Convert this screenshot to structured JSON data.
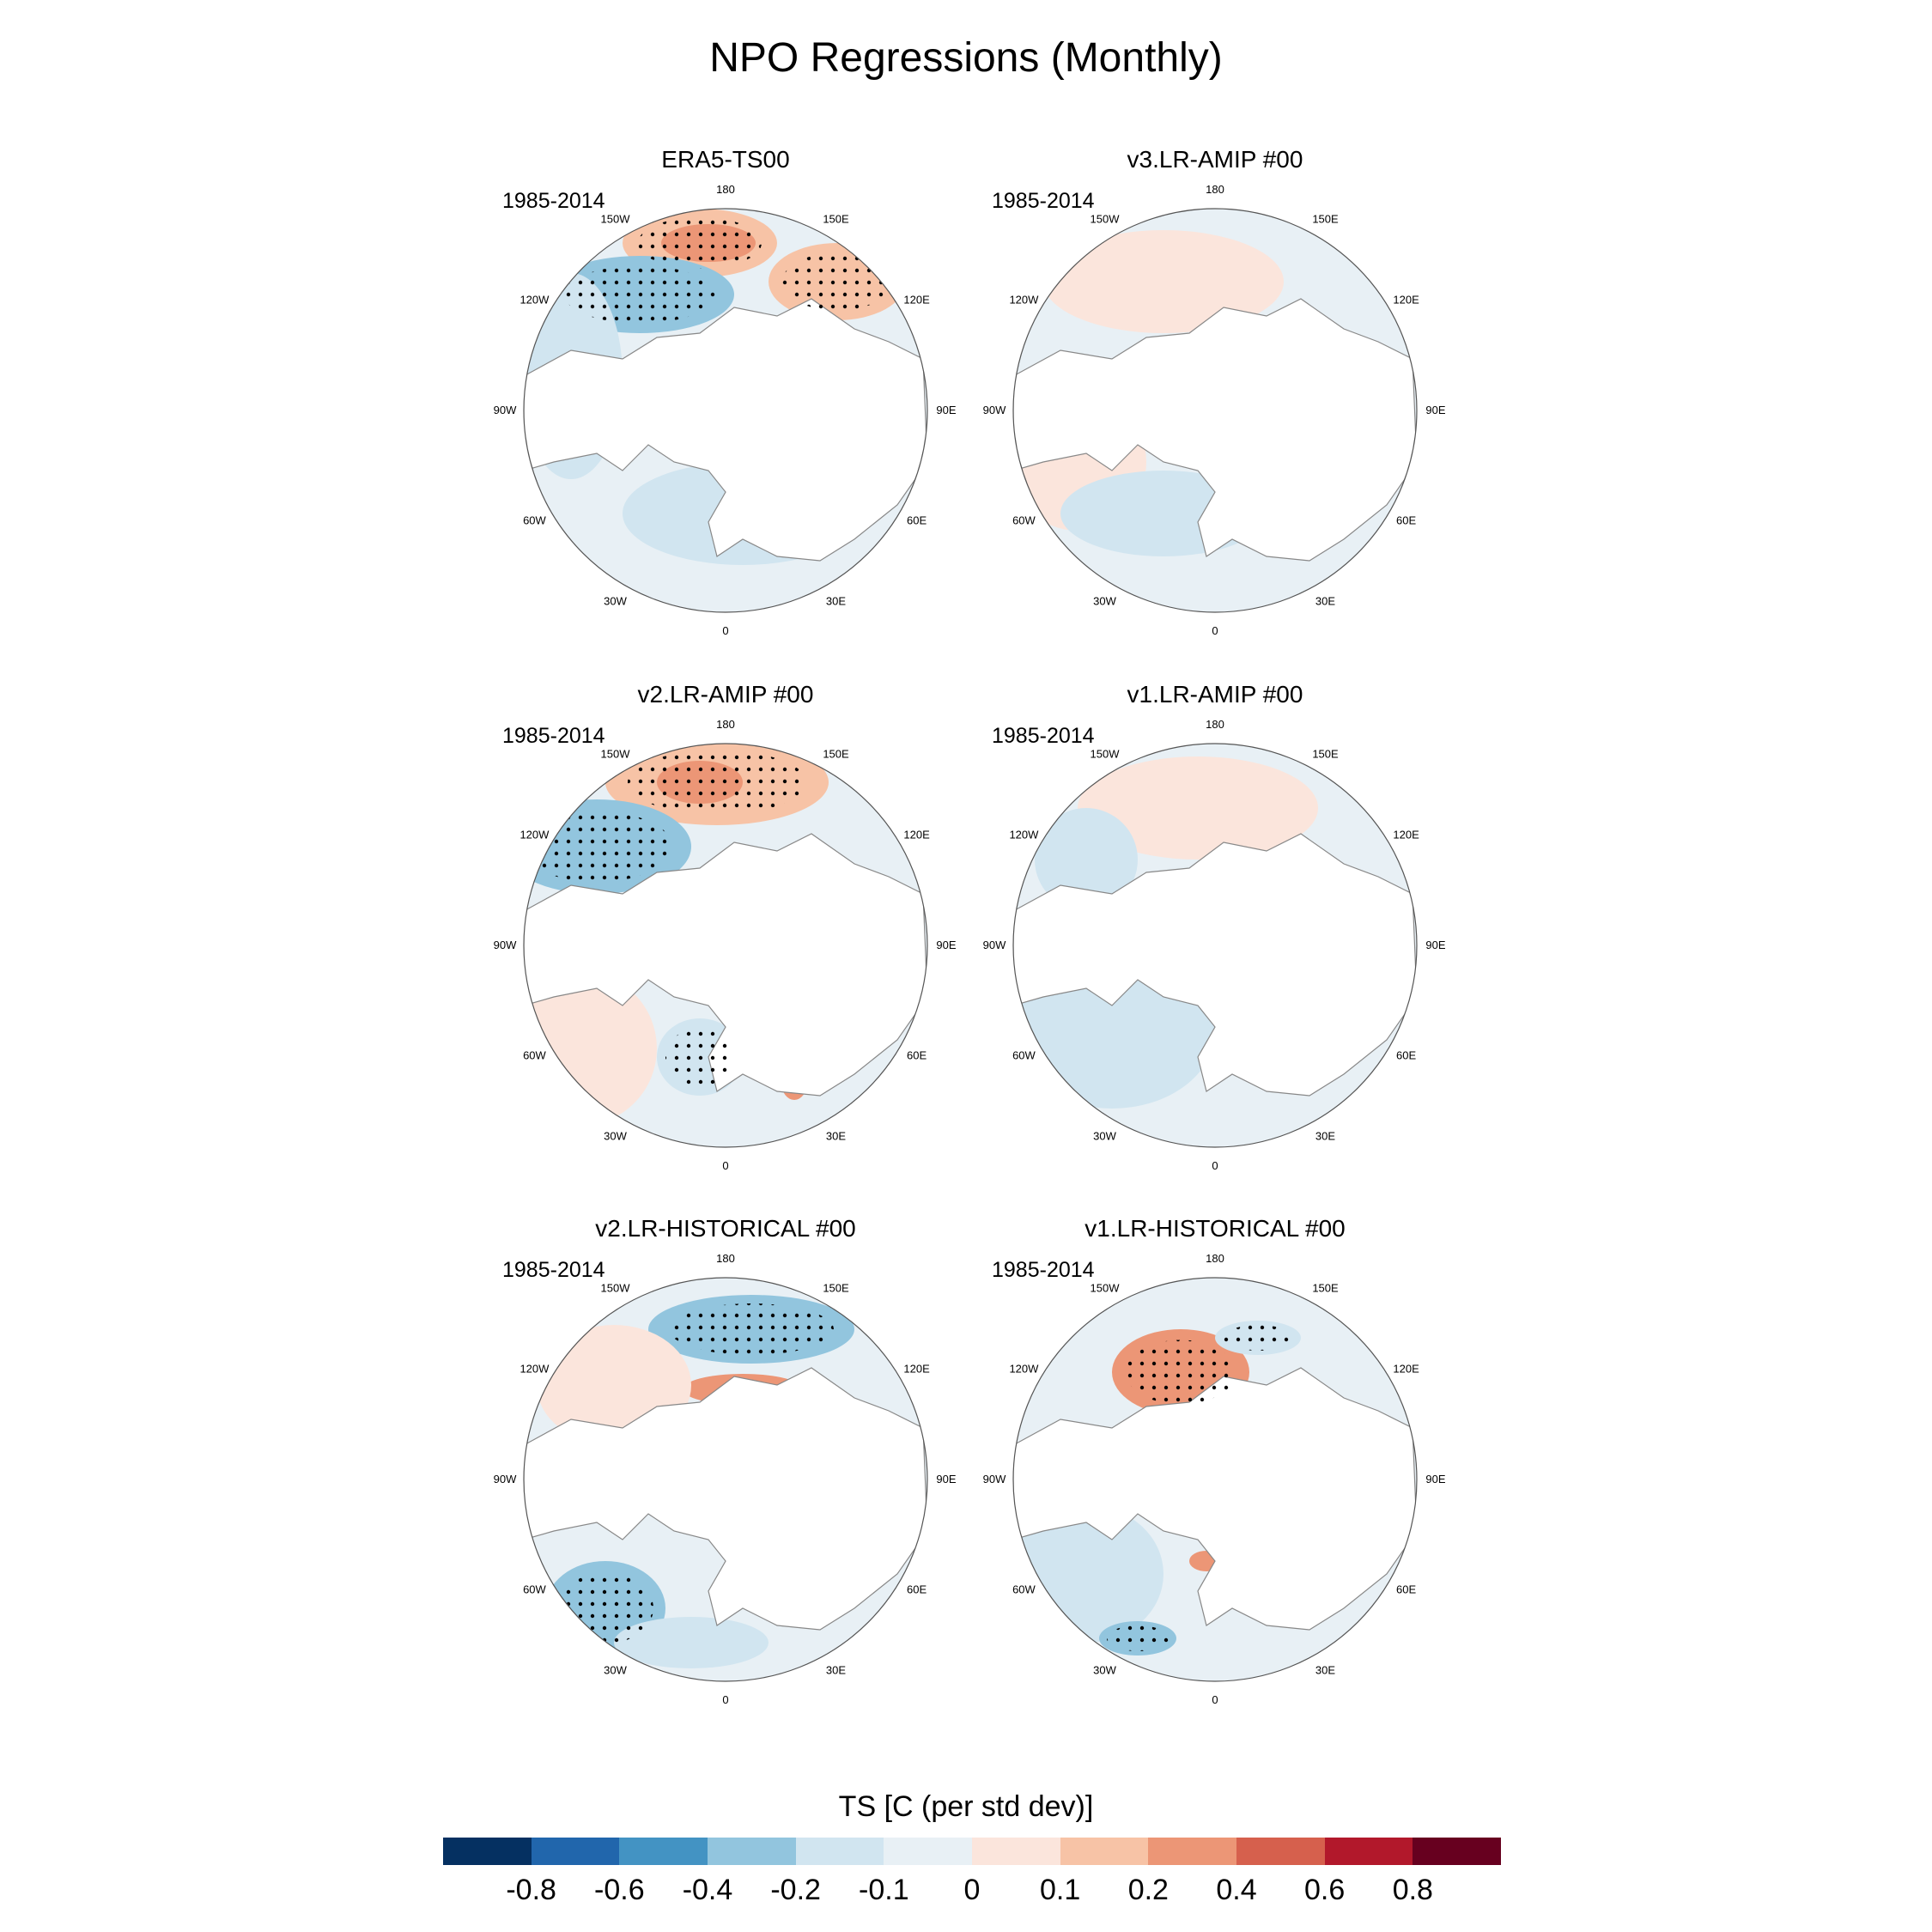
{
  "title": "NPO Regressions (Monthly)",
  "panels": [
    {
      "title": "ERA5-TS00",
      "period": "1985-2014"
    },
    {
      "title": "v3.LR-AMIP  #00",
      "period": "1985-2014"
    },
    {
      "title": "v2.LR-AMIP  #00",
      "period": "1985-2014"
    },
    {
      "title": "v1.LR-AMIP  #00",
      "period": "1985-2014"
    },
    {
      "title": "v2.LR-HISTORICAL  #00",
      "period": "1985-2014"
    },
    {
      "title": "v1.LR-HISTORICAL  #00",
      "period": "1985-2014"
    }
  ],
  "longitude_labels": [
    "180",
    "150E",
    "120E",
    "90E",
    "60E",
    "30E",
    "0",
    "30W",
    "60W",
    "90W",
    "120W",
    "150W"
  ],
  "colorbar": {
    "title": "TS [C (per std dev)]",
    "levels": [
      "-0.8",
      "-0.6",
      "-0.4",
      "-0.2",
      "-0.1",
      "0",
      "0.1",
      "0.2",
      "0.4",
      "0.6",
      "0.8"
    ],
    "colors": [
      "#053061",
      "#2166ac",
      "#4393c3",
      "#92c5de",
      "#d1e5f0",
      "#e8f0f5",
      "#fbe5dc",
      "#f7c3a6",
      "#ec9676",
      "#d6604d",
      "#b2182b",
      "#67001f"
    ]
  },
  "chart_data": [
    {
      "type": "polar stereographic map",
      "panel": "ERA5-TS00",
      "variable": "TS",
      "units": "C (per std dev)",
      "stippling": "significant regions"
    },
    {
      "type": "polar stereographic map",
      "panel": "v3.LR-AMIP  #00",
      "variable": "TS",
      "units": "C (per std dev)",
      "stippling": "significant regions"
    },
    {
      "type": "polar stereographic map",
      "panel": "v2.LR-AMIP  #00",
      "variable": "TS",
      "units": "C (per std dev)",
      "stippling": "significant regions"
    },
    {
      "type": "polar stereographic map",
      "panel": "v1.LR-AMIP  #00",
      "variable": "TS",
      "units": "C (per std dev)",
      "stippling": "significant regions"
    },
    {
      "type": "polar stereographic map",
      "panel": "v2.LR-HISTORICAL  #00",
      "variable": "TS",
      "units": "C (per std dev)",
      "stippling": "significant regions"
    },
    {
      "type": "polar stereographic map",
      "panel": "v1.LR-HISTORICAL  #00",
      "variable": "TS",
      "units": "C (per std dev)",
      "stippling": "significant regions"
    }
  ]
}
